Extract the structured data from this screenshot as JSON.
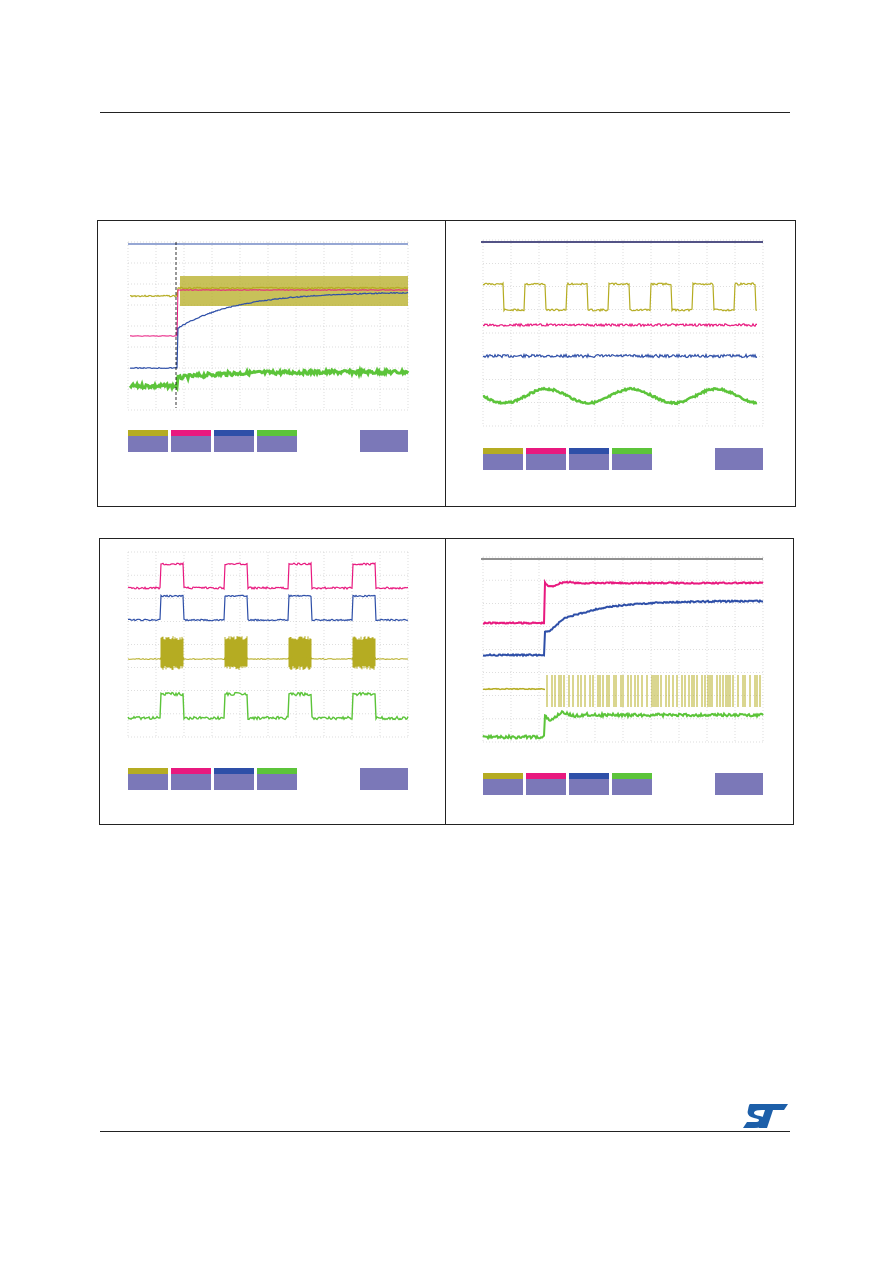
{
  "document": {
    "brand_logo_icon": "st-logo-icon"
  },
  "colors": {
    "ch1": "#b5ac22",
    "ch2": "#e8197f",
    "ch3": "#2e4fa8",
    "ch4": "#5cc43a",
    "panel": "#7b78b8",
    "grid": "#bdbdbd",
    "brand": "#1d5fa9"
  },
  "figures": [
    {
      "id": "fig1",
      "caption": ""
    },
    {
      "id": "fig2",
      "caption": ""
    },
    {
      "id": "fig3",
      "caption": ""
    },
    {
      "id": "fig4",
      "caption": ""
    }
  ]
}
